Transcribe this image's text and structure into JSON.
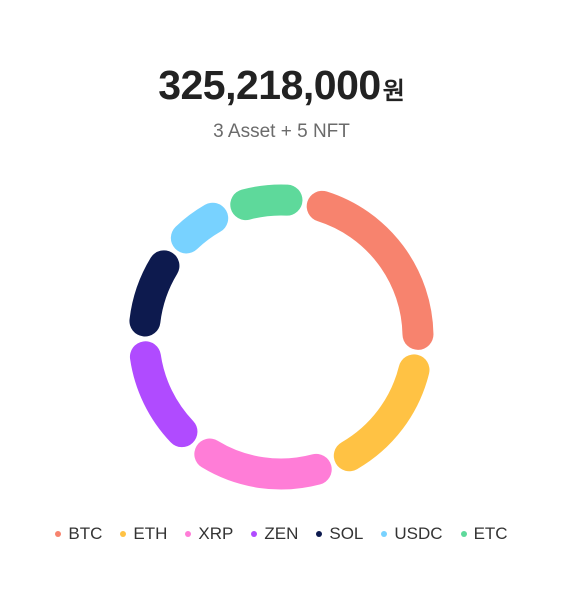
{
  "summary": {
    "amount": "325,218,000",
    "unit": "원",
    "subtitle": "3 Asset + 5 NFT"
  },
  "chart_data": {
    "type": "donut",
    "series": [
      {
        "name": "BTC",
        "value": 24,
        "color": "#F7836E"
      },
      {
        "name": "ETH",
        "value": 17,
        "color": "#FFC244"
      },
      {
        "name": "XRP",
        "value": 17,
        "color": "#FF7DD7"
      },
      {
        "name": "ZEN",
        "value": 14,
        "color": "#B04BFF"
      },
      {
        "name": "SOL",
        "value": 11,
        "color": "#0D1A4E"
      },
      {
        "name": "USDC",
        "value": 8,
        "color": "#78D2FF"
      },
      {
        "name": "ETC",
        "value": 9,
        "color": "#5ED99B"
      }
    ],
    "legend_position": "bottom"
  }
}
